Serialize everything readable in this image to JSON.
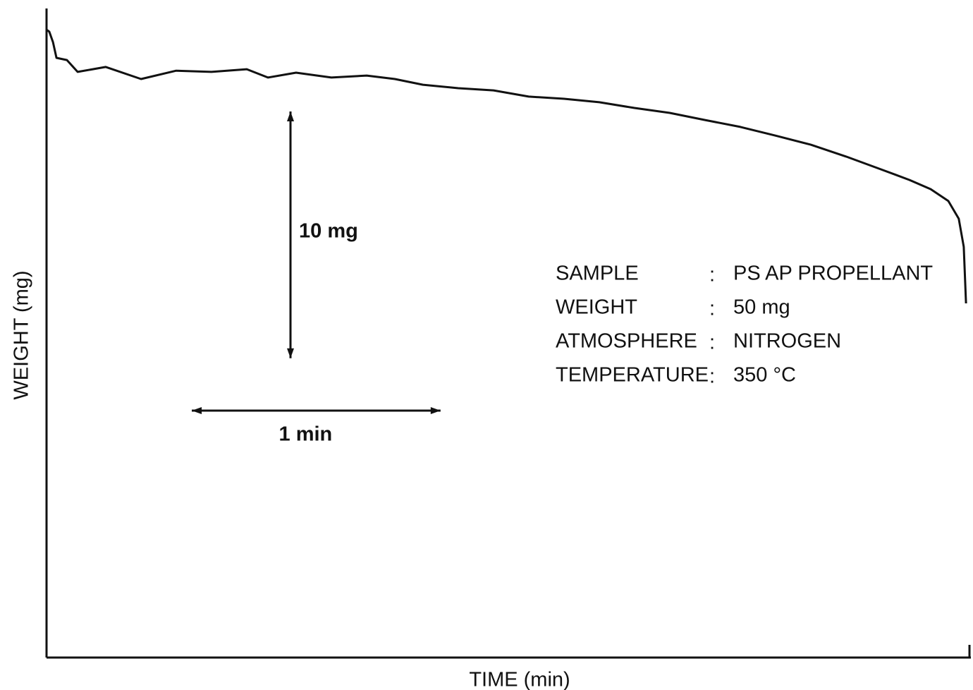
{
  "chart_data": {
    "type": "line",
    "x_label": "TIME (min)",
    "y_label": "WEIGHT (mg)",
    "xlim": [
      0,
      3.71
    ],
    "ylim": [
      24.6,
      50.9
    ],
    "series": [
      {
        "color": "#111111",
        "x": [
          0,
          0.011,
          0.026,
          0.04,
          0.082,
          0.125,
          0.238,
          0.38,
          0.521,
          0.663,
          0.805,
          0.89,
          1.003,
          1.145,
          1.287,
          1.4,
          1.513,
          1.655,
          1.797,
          1.938,
          2.08,
          2.222,
          2.363,
          2.505,
          2.647,
          2.789,
          2.93,
          3.072,
          3.214,
          3.355,
          3.469,
          3.554,
          3.625,
          3.667,
          3.687,
          3.696
        ],
        "values": [
          50.04,
          49.96,
          49.53,
          48.9,
          48.81,
          48.33,
          48.53,
          48.04,
          48.38,
          48.33,
          48.44,
          48.1,
          48.3,
          48.1,
          48.18,
          48.04,
          47.81,
          47.67,
          47.58,
          47.33,
          47.24,
          47.1,
          46.87,
          46.67,
          46.38,
          46.1,
          45.75,
          45.38,
          44.9,
          44.38,
          43.95,
          43.58,
          43.1,
          42.38,
          41.24,
          38.95
        ]
      }
    ],
    "scale_bars": [
      {
        "axis": "y",
        "value": 10,
        "label": "10 mg"
      },
      {
        "axis": "x",
        "value": 1,
        "label": "1 min"
      }
    ],
    "info": [
      [
        "SAMPLE",
        "PS AP PROPELLANT"
      ],
      [
        "WEIGHT",
        "50 mg"
      ],
      [
        "ATMOSPHERE",
        "NITROGEN"
      ],
      [
        "TEMPERATURE",
        "350 °C"
      ]
    ]
  }
}
